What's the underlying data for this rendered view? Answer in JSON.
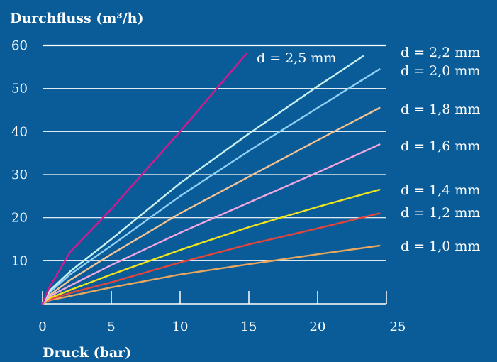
{
  "chart_data": {
    "type": "line",
    "title": "",
    "ylabel": "Durchfluss (m³/h)",
    "xlabel": "Druck (bar)",
    "xlim": [
      0,
      25
    ],
    "ylim": [
      0,
      60
    ],
    "xticks": [
      0,
      5,
      10,
      15,
      20,
      25
    ],
    "yticks": [
      10,
      20,
      30,
      40,
      50,
      60
    ],
    "grid": "horizontal",
    "series": [
      {
        "name": "d = 1,0 mm",
        "color": "#e8a75e",
        "points": [
          [
            0,
            0
          ],
          [
            0.5,
            0.8
          ],
          [
            2,
            1.8
          ],
          [
            5,
            3.8
          ],
          [
            10,
            6.8
          ],
          [
            15,
            9.2
          ],
          [
            20,
            11.5
          ],
          [
            24.5,
            13.5
          ]
        ]
      },
      {
        "name": "d = 1,2 mm",
        "color": "#e0463c",
        "points": [
          [
            0,
            0
          ],
          [
            0.5,
            1.0
          ],
          [
            2,
            2.5
          ],
          [
            5,
            5.0
          ],
          [
            10,
            9.6
          ],
          [
            15,
            13.8
          ],
          [
            20,
            17.5
          ],
          [
            24.5,
            21.0
          ]
        ]
      },
      {
        "name": "d = 1,4 mm",
        "color": "#f2e41c",
        "points": [
          [
            0,
            0
          ],
          [
            0.5,
            1.3
          ],
          [
            2,
            3.2
          ],
          [
            5,
            6.8
          ],
          [
            10,
            12.5
          ],
          [
            15,
            17.8
          ],
          [
            20,
            22.5
          ],
          [
            24.5,
            26.5
          ]
        ]
      },
      {
        "name": "d = 1,6 mm",
        "color": "#f2a6e0",
        "points": [
          [
            0,
            0
          ],
          [
            0.5,
            1.7
          ],
          [
            2,
            4.2
          ],
          [
            5,
            9.0
          ],
          [
            10,
            16.5
          ],
          [
            15,
            23.5
          ],
          [
            20,
            30.5
          ],
          [
            24.5,
            37.0
          ]
        ]
      },
      {
        "name": "d = 1,8 mm",
        "color": "#f5c391",
        "points": [
          [
            0,
            0
          ],
          [
            0.5,
            2.0
          ],
          [
            2,
            5.5
          ],
          [
            5,
            11.5
          ],
          [
            10,
            21.0
          ],
          [
            15,
            29.5
          ],
          [
            20,
            38.0
          ],
          [
            24.5,
            45.5
          ]
        ]
      },
      {
        "name": "d = 2,0 mm",
        "color": "#8fd0f5",
        "points": [
          [
            0,
            0
          ],
          [
            0.5,
            2.6
          ],
          [
            2,
            6.8
          ],
          [
            5,
            13.5
          ],
          [
            10,
            25.0
          ],
          [
            15,
            35.5
          ],
          [
            20,
            45.5
          ],
          [
            24.5,
            54.5
          ]
        ]
      },
      {
        "name": "d = 2,2 mm",
        "color": "#c8f0ee",
        "points": [
          [
            0,
            0
          ],
          [
            0.5,
            3.0
          ],
          [
            2,
            7.5
          ],
          [
            5,
            15.0
          ],
          [
            10,
            28.0
          ],
          [
            15,
            39.5
          ],
          [
            20,
            50.5
          ],
          [
            23.3,
            57.5
          ]
        ]
      },
      {
        "name": "d = 2,5 mm",
        "color": "#d5188e",
        "points": [
          [
            0,
            0
          ],
          [
            0.5,
            3.8
          ],
          [
            2,
            12.0
          ],
          [
            5,
            22.0
          ],
          [
            10,
            40.0
          ],
          [
            14.8,
            58.0
          ]
        ]
      }
    ]
  }
}
